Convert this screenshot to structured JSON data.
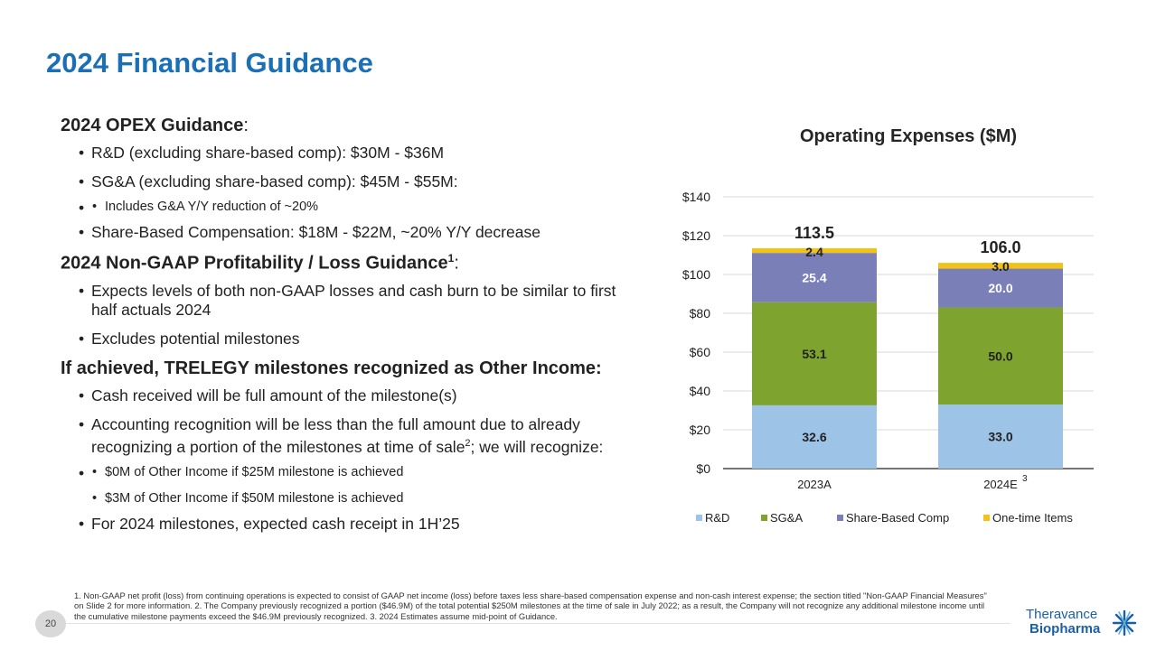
{
  "slide": {
    "title": "2024 Financial Guidance",
    "page_number": "20"
  },
  "left": {
    "opex_heading": "2024 OPEX Guidance",
    "opex_heading_colon": ":",
    "opex_items": [
      "R&D (excluding share-based comp): $30M - $36M",
      "SG&A (excluding share-based comp): $45M - $55M:"
    ],
    "opex_sub": "Includes G&A Y/Y reduction of ~20%",
    "opex_sbc": "Share-Based Compensation: $18M - $22M, ~20% Y/Y decrease",
    "nongaap_heading": "2024 Non-GAAP Profitability / Loss Guidance",
    "nongaap_sup": "1",
    "nongaap_colon": ":",
    "nongaap_items": [
      "Expects levels of both non-GAAP losses and cash burn to be similar to first half actuals 2024",
      "Excludes potential milestones"
    ],
    "trelegy_heading": "If achieved, TRELEGY milestones recognized as Other Income:",
    "trelegy_item1": "Cash received will be full amount of the milestone(s)",
    "trelegy_item2_a": "Accounting recognition will be less than the full amount due to already recognizing a portion of the milestones at time of sale",
    "trelegy_item2_sup": "2",
    "trelegy_item2_b": "; we will recognize:",
    "trelegy_sub": [
      "$0M of Other Income if $25M milestone is achieved",
      "$3M of Other Income if $50M milestone is achieved"
    ],
    "trelegy_item3": "For 2024 milestones, expected cash receipt in 1H’25"
  },
  "footnote": "1. Non-GAAP net profit (loss) from continuing operations is expected to consist of GAAP net income (loss) before taxes less share-based compensation expense and non-cash interest expense; the section titled \"Non-GAAP Financial Measures\" on Slide 2 for more information. 2. The Company previously recognized a portion ($46.9M) of the total potential $250M milestones at the time of sale in July 2022; as a result, the Company will not recognize any additional milestone income until the cumulative milestone payments exceed the $46.9M previously recognized. 3. 2024 Estimates assume mid-point of Guidance.",
  "logo": {
    "line1": "Theravance",
    "line2": "Biopharma"
  },
  "chart_data": {
    "type": "bar",
    "stacked": true,
    "title": "Operating Expenses ($M)",
    "categories": [
      "2023A",
      "2024E"
    ],
    "category_superscripts": [
      "",
      "3"
    ],
    "series": [
      {
        "name": "R&D",
        "values": [
          32.6,
          33.0
        ],
        "color": "#9dc3e6",
        "label_color": "#222222"
      },
      {
        "name": "SG&A",
        "values": [
          53.1,
          50.0
        ],
        "color": "#7ea32e",
        "label_color": "#222222"
      },
      {
        "name": "Share-Based Comp",
        "values": [
          25.4,
          20.0
        ],
        "color": "#7b7fb8",
        "label_color": "#ffffff"
      },
      {
        "name": "One-time Items",
        "values": [
          2.4,
          3.0
        ],
        "color": "#f2c218",
        "label_color": "#222222"
      }
    ],
    "value_labels": [
      [
        "32.6",
        "53.1",
        "25.4",
        "2.4"
      ],
      [
        "33.0",
        "50.0",
        "20.0",
        "3.0"
      ]
    ],
    "totals": [
      "113.5",
      "106.0"
    ],
    "yticks": [
      "$0",
      "$20",
      "$40",
      "$60",
      "$80",
      "$100",
      "$120",
      "$140"
    ],
    "ylim": [
      0,
      140
    ],
    "grid": true,
    "legend_position": "bottom"
  }
}
